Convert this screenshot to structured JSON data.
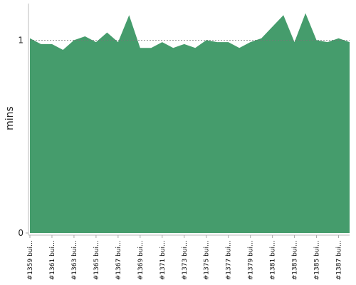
{
  "chart_data": {
    "type": "area",
    "y_label": "mins",
    "color": "#459c6c",
    "categories": [
      "#1359 bui…",
      null,
      "#1361 bui…",
      null,
      "#1363 bui…",
      null,
      "#1365 bui…",
      null,
      "#1367 bui…",
      null,
      "#1369 bui…",
      null,
      "#1371 bui…",
      null,
      "#1373 bui…",
      null,
      "#1375 bui…",
      null,
      "#1377 bui…",
      null,
      "#1379 bui…",
      null,
      "#1381 bui…",
      null,
      "#1383 bui…",
      null,
      "#1385 bui…",
      null,
      "#1387 bui…",
      null
    ],
    "values": [
      1.01,
      0.98,
      0.98,
      0.95,
      1.0,
      1.02,
      0.99,
      1.04,
      0.99,
      1.13,
      0.96,
      0.96,
      0.99,
      0.96,
      0.98,
      0.96,
      1.0,
      0.99,
      0.99,
      0.96,
      0.99,
      1.01,
      1.07,
      1.13,
      0.99,
      1.14,
      1.0,
      0.99,
      1.01,
      0.99
    ],
    "ylim": [
      0,
      1.19
    ],
    "yticks": [
      0,
      1
    ],
    "grid": true
  }
}
